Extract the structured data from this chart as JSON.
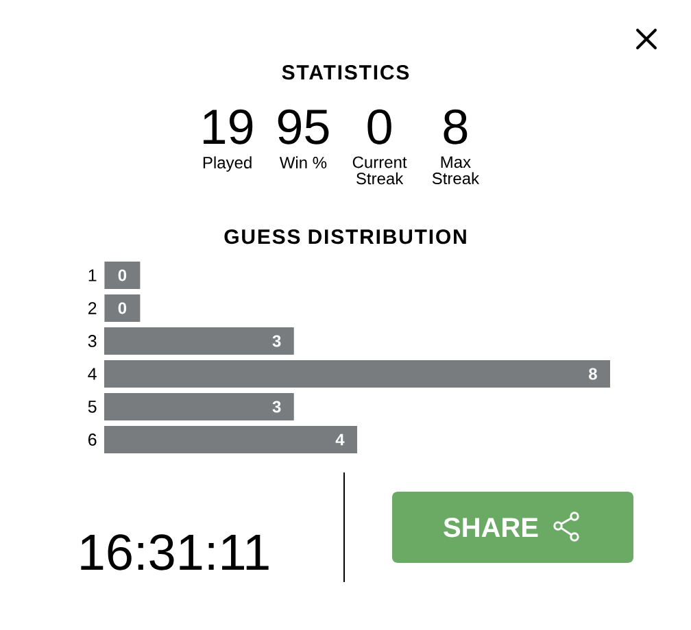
{
  "chart_data": [
    {
      "type": "other",
      "title": "STATISTICS",
      "categories": [
        "Played",
        "Win %",
        "Current Streak",
        "Max Streak"
      ],
      "values": [
        19,
        95,
        0,
        8
      ],
      "data_labels": true
    },
    {
      "type": "bar",
      "title": "GUESS DISTRIBUTION",
      "categories": [
        "1",
        "2",
        "3",
        "4",
        "5",
        "6"
      ],
      "values": [
        0,
        0,
        3,
        8,
        3,
        4
      ],
      "color": "#787c7e",
      "orientation": "horizontal",
      "data_labels": true
    },
    {
      "type": "other",
      "annotations": [
        "16:31:11",
        "SHARE"
      ]
    }
  ]
}
